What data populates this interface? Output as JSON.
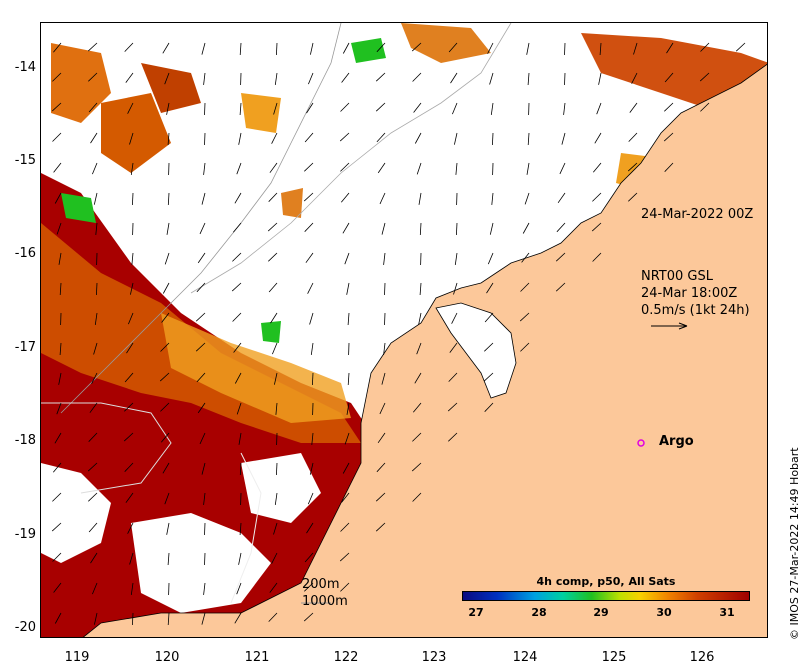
{
  "map": {
    "x_ticks": [
      "119",
      "120",
      "121",
      "122",
      "123",
      "124",
      "125",
      "126"
    ],
    "y_ticks": [
      "-14",
      "-15",
      "-16",
      "-17",
      "-18",
      "-19",
      "-20"
    ],
    "colors": {
      "land": "#fcc89a",
      "sst_hot": "#a80000",
      "sst_warm": "#d45a00",
      "sst_mid": "#f0a020",
      "sst_cool": "#20c020",
      "current_arrow": "#000000"
    }
  },
  "annotations": {
    "argo_date": "24-Mar-2022 00Z",
    "gsl_title": "NRT00 GSL",
    "gsl_date": "24-Mar 18:00Z",
    "gsl_scale": "0.5m/s (1kt 24h)",
    "argo_label": "Argo",
    "contour_200": "200m",
    "contour_1000": "1000m"
  },
  "colorbar": {
    "title": "4h comp, p50, All Sats",
    "ticks": [
      "27",
      "28",
      "29",
      "30",
      "31"
    ]
  },
  "credit": "© IMOS 27-Mar-2022 14:49 Hobart"
}
